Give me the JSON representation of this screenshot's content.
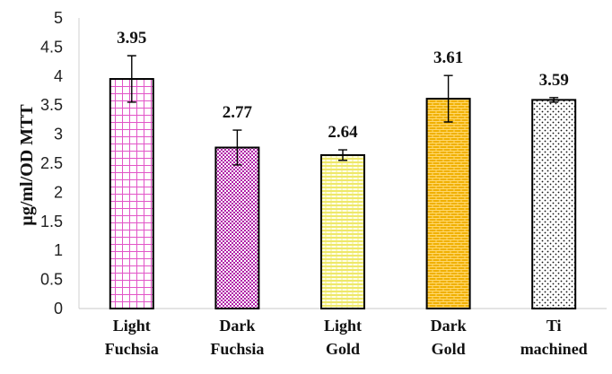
{
  "chart_data": {
    "type": "bar",
    "categories": [
      [
        "Light",
        "Fuchsia"
      ],
      [
        "Dark",
        "Fuchsia"
      ],
      [
        "Light",
        "Gold"
      ],
      [
        "Dark",
        "Gold"
      ],
      [
        "Ti",
        "machined"
      ]
    ],
    "values": [
      3.95,
      2.77,
      2.64,
      3.61,
      3.59
    ],
    "value_labels": [
      "3.95",
      "2.77",
      "2.64",
      "3.61",
      "3.59"
    ],
    "error_bars": [
      [
        3.55,
        4.35
      ],
      [
        2.47,
        3.07
      ],
      [
        2.55,
        2.73
      ],
      [
        3.21,
        4.01
      ],
      [
        3.55,
        3.63
      ]
    ],
    "ylabel": "µg/ml/OD MTT",
    "ylim": [
      0,
      5
    ],
    "yticks": [
      "0",
      "0.5",
      "1",
      "1.5",
      "2",
      "2.5",
      "3",
      "3.5",
      "4",
      "4.5",
      "5"
    ],
    "grid": false,
    "bar_styles": [
      {
        "pattern": "grid",
        "color": "#e255c8"
      },
      {
        "pattern": "checker",
        "color": "#b020a8"
      },
      {
        "pattern": "hlines",
        "color": "#e8e040"
      },
      {
        "pattern": "bricks",
        "color": "#f0b000"
      },
      {
        "pattern": "dots",
        "color": "#111111"
      }
    ]
  }
}
